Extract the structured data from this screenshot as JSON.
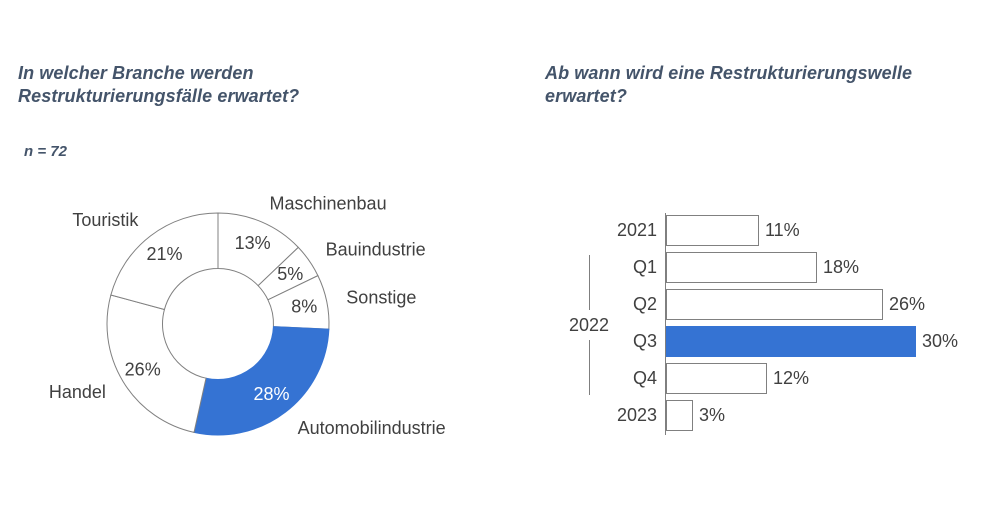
{
  "colors": {
    "accent_blue": "#3573D3",
    "outline_gray": "#808080",
    "axis_gray": "#7f7f7f",
    "label_gray": "#404040",
    "title_slate": "#44546A",
    "highlight_text": "#ffffff",
    "background": "#ffffff"
  },
  "left_panel": {
    "title_line1": "In welcher Branche werden",
    "title_line2": "Restrukturierungsfälle erwartet?",
    "sample_note": "n = 72"
  },
  "right_panel": {
    "title_line1": "Ab wann wird eine Restrukturierungswelle",
    "title_line2": "erwartet?"
  },
  "chart_data": [
    {
      "type": "pie",
      "subtype": "donut",
      "title": "In welcher Branche werden Restrukturierungsfälle erwartet?",
      "sample_note": "n = 72",
      "categories": [
        "Maschinenbau",
        "Bauindustrie",
        "Sonstige",
        "Automobilindustrie",
        "Handel",
        "Touristik"
      ],
      "values": [
        13,
        5,
        8,
        28,
        26,
        21
      ],
      "value_labels": [
        "13%",
        "5%",
        "8%",
        "28%",
        "26%",
        "21%"
      ],
      "highlighted": "Automobilindustrie",
      "segment_fills": [
        "#ffffff",
        "#ffffff",
        "#ffffff",
        "#3573D3",
        "#ffffff",
        "#ffffff"
      ],
      "start_angle_deg": 0,
      "direction": "clockwise",
      "legend": "none"
    },
    {
      "type": "bar",
      "orientation": "horizontal",
      "title": "Ab wann wird eine Restrukturierungswelle erwartet?",
      "categories": [
        "2021",
        "Q1",
        "Q2",
        "Q3",
        "Q4",
        "2023"
      ],
      "values": [
        11,
        18,
        26,
        30,
        12,
        3
      ],
      "value_labels": [
        "11%",
        "18%",
        "26%",
        "30%",
        "12%",
        "3%"
      ],
      "highlighted": "Q3",
      "group_label": "2022",
      "group_span": [
        "Q1",
        "Q4"
      ],
      "xlim": [
        0,
        30
      ],
      "gridlines": false,
      "legend": "none"
    }
  ]
}
